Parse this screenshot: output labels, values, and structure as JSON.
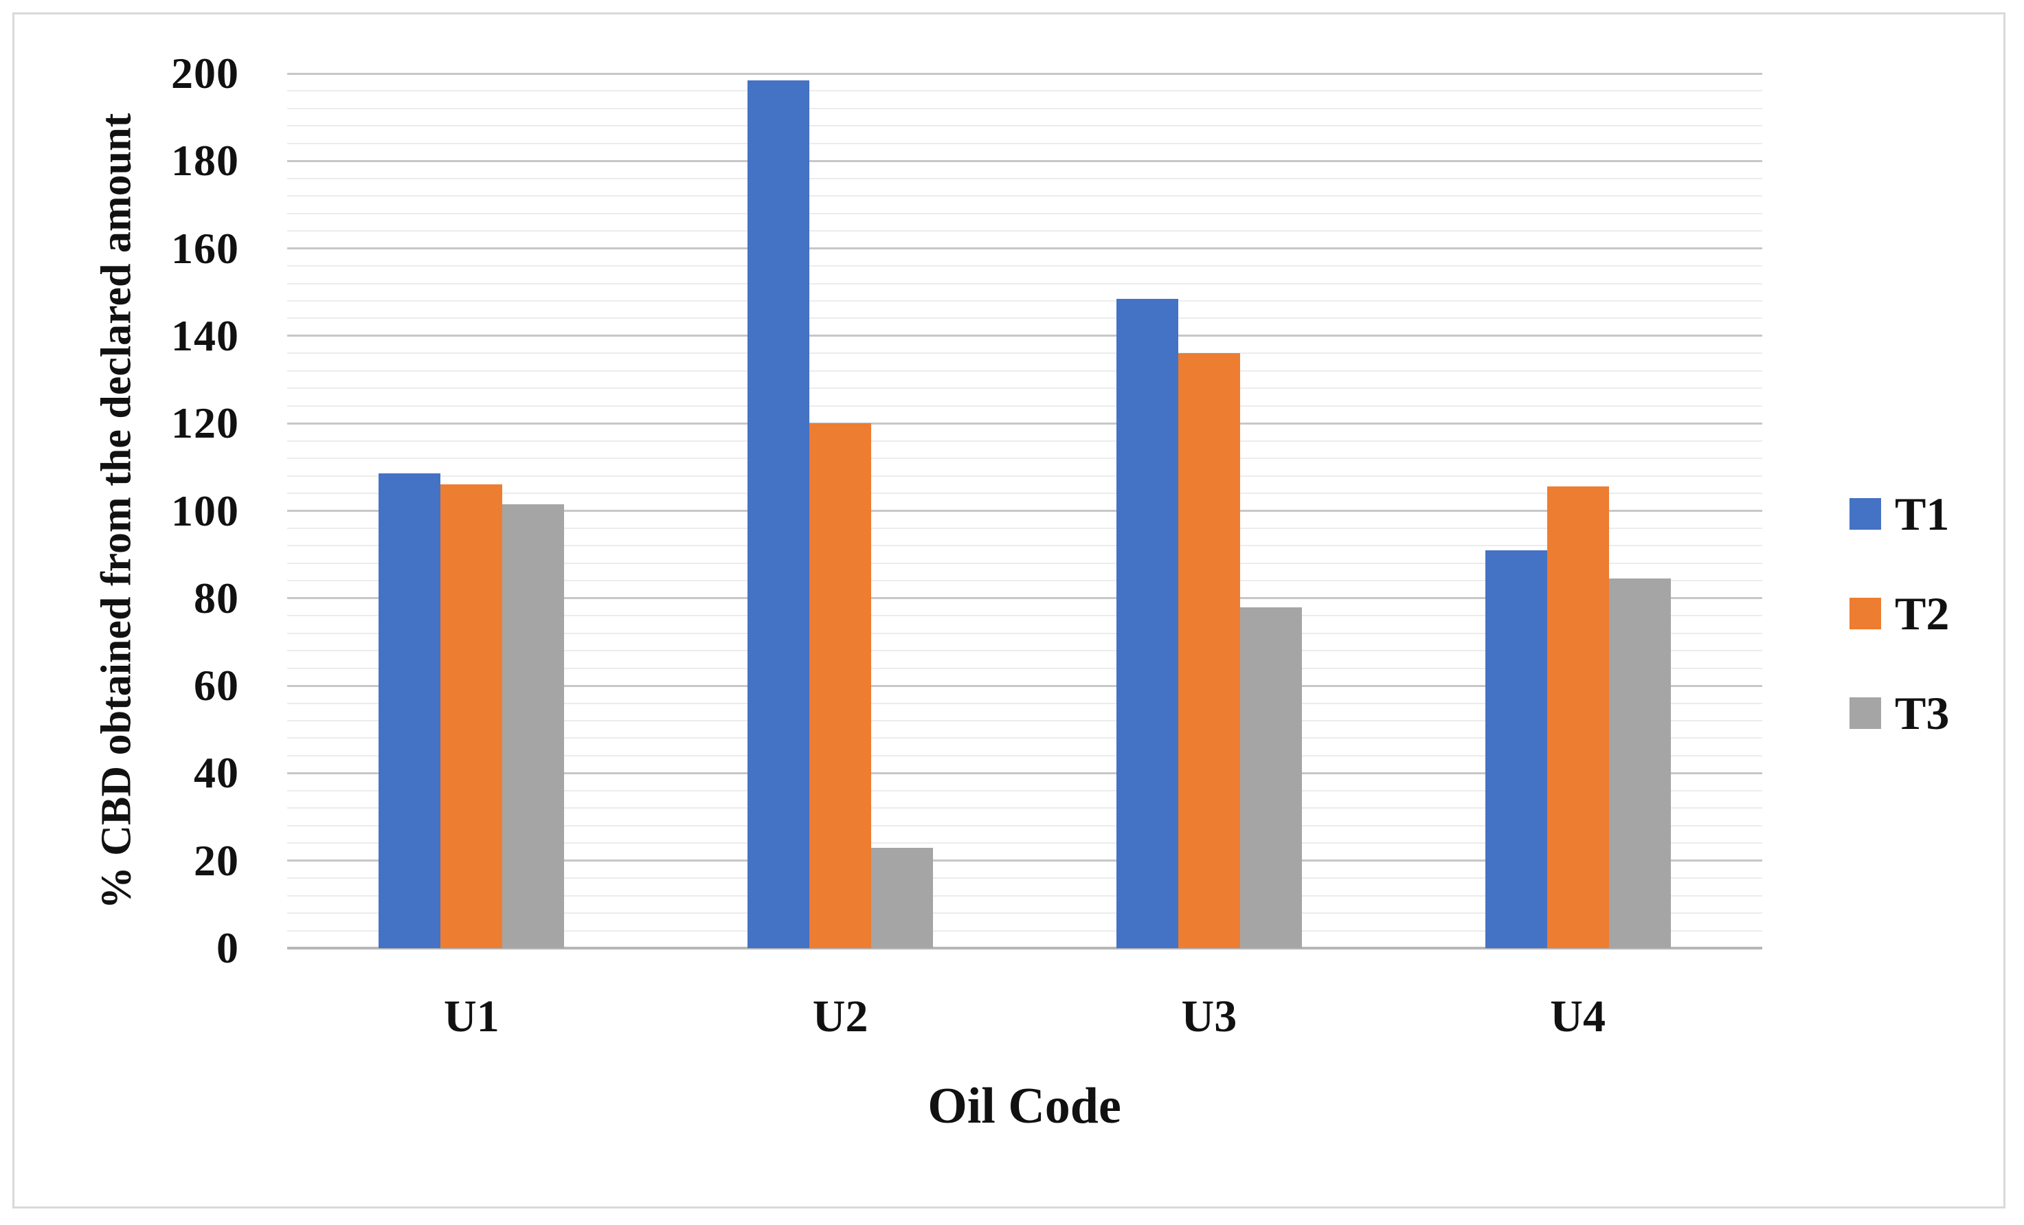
{
  "chart_data": {
    "type": "bar",
    "title": "",
    "xlabel": "Oil Code",
    "ylabel": "% CBD obtained from the declared amount",
    "categories": [
      "U1",
      "U2",
      "U3",
      "U4"
    ],
    "series": [
      {
        "name": "T1",
        "color": "#4472C4",
        "values": [
          108.5,
          198.5,
          148.5,
          91
        ]
      },
      {
        "name": "T2",
        "color": "#ED7D31",
        "values": [
          106,
          120,
          136,
          105.5
        ]
      },
      {
        "name": "T3",
        "color": "#A5A5A5",
        "values": [
          101.5,
          23,
          78,
          84.5
        ]
      }
    ],
    "ylim": [
      0,
      200
    ],
    "y_major_step": 20,
    "y_minor_step": 4,
    "y_tick_labels": [
      "0",
      "20",
      "40",
      "60",
      "80",
      "100",
      "120",
      "140",
      "160",
      "180",
      "200"
    ],
    "grid": "horizontal, major and minor lines, no vertical gridlines",
    "legend_position": "right",
    "legend_entries": [
      "T1",
      "T2",
      "T3"
    ]
  },
  "colors": {
    "background": "#ffffff",
    "frame_border": "#d9d9d9",
    "major_gridline": "#c7c7c7",
    "minor_gridline": "#ececec",
    "axis_line": "#b7b7b7",
    "text": "#111111"
  }
}
